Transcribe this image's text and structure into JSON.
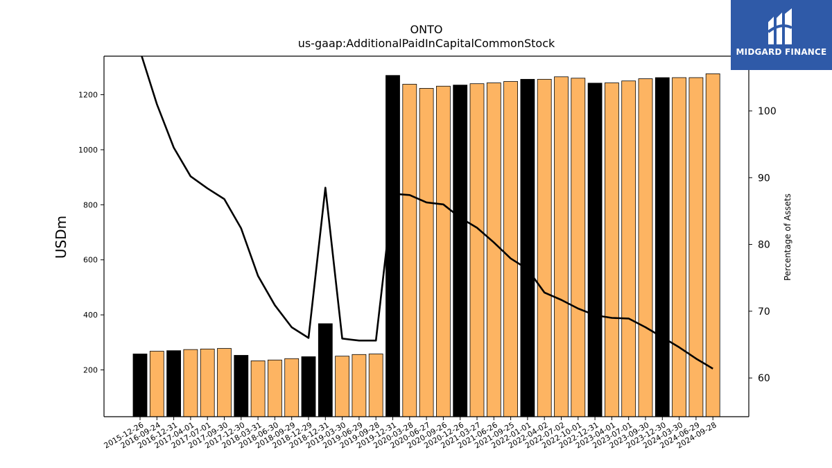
{
  "brand": {
    "name": "MIDGARD FINANCE"
  },
  "chart_data": {
    "type": "bar",
    "title": "ONTO",
    "subtitle": "us-gaap:AdditionalPaidInCapitalCommonStock",
    "ylabel": "USDm",
    "y2label": "Percentage of Assets",
    "ylim": [
      30,
      1340
    ],
    "y2lim": [
      54.2,
      108.2
    ],
    "yticks": [
      200,
      400,
      600,
      800,
      1000,
      1200
    ],
    "y2ticks": [
      60,
      70,
      80,
      90,
      100
    ],
    "colors": {
      "fiscal_year_end": "#000000",
      "quarter": "#fdb462",
      "line": "#000000"
    },
    "categories": [
      "2015-12-26",
      "2016-09-24",
      "2016-12-31",
      "2017-04-01",
      "2017-07-01",
      "2017-09-30",
      "2017-12-30",
      "2018-03-31",
      "2018-06-30",
      "2018-09-29",
      "2018-12-29",
      "2018-12-31",
      "2019-03-30",
      "2019-06-29",
      "2019-09-28",
      "2019-12-31",
      "2020-03-28",
      "2020-06-27",
      "2020-09-26",
      "2020-12-26",
      "2021-03-27",
      "2021-06-26",
      "2021-09-25",
      "2022-01-01",
      "2022-04-02",
      "2022-07-02",
      "2022-10-01",
      "2022-12-31",
      "2023-04-01",
      "2023-07-01",
      "2023-09-30",
      "2023-12-30",
      "2024-03-30",
      "2024-06-29",
      "2024-09-28"
    ],
    "values": [
      258,
      268,
      270,
      274,
      276,
      278,
      253,
      233,
      236,
      241,
      248,
      368,
      250,
      256,
      258,
      1270,
      1238,
      1223,
      1231,
      1235,
      1240,
      1243,
      1248,
      1256,
      1256,
      1265,
      1260,
      1242,
      1243,
      1250,
      1258,
      1262,
      1262,
      1262,
      1276
    ],
    "bar_kind": [
      "fy",
      "q",
      "fy",
      "q",
      "q",
      "q",
      "fy",
      "q",
      "q",
      "q",
      "fy",
      "fy",
      "q",
      "q",
      "q",
      "fy",
      "q",
      "q",
      "q",
      "fy",
      "q",
      "q",
      "q",
      "fy",
      "q",
      "q",
      "q",
      "fy",
      "q",
      "q",
      "q",
      "fy",
      "q",
      "q",
      "q"
    ],
    "series": [
      {
        "axis": "right",
        "values": [
          109,
          101,
          94.5,
          90.2,
          88.4,
          86.8,
          82.4,
          75.3,
          70.9,
          67.6,
          66.0,
          88.5,
          65.9,
          65.6,
          65.6,
          87.6,
          87.4,
          86.3,
          86.0,
          84.0,
          82.5,
          80.3,
          77.9,
          76.3,
          72.8,
          71.7,
          70.4,
          69.4,
          69.0,
          68.9,
          67.6,
          66.1,
          64.6,
          62.9,
          61.4
        ]
      }
    ]
  }
}
